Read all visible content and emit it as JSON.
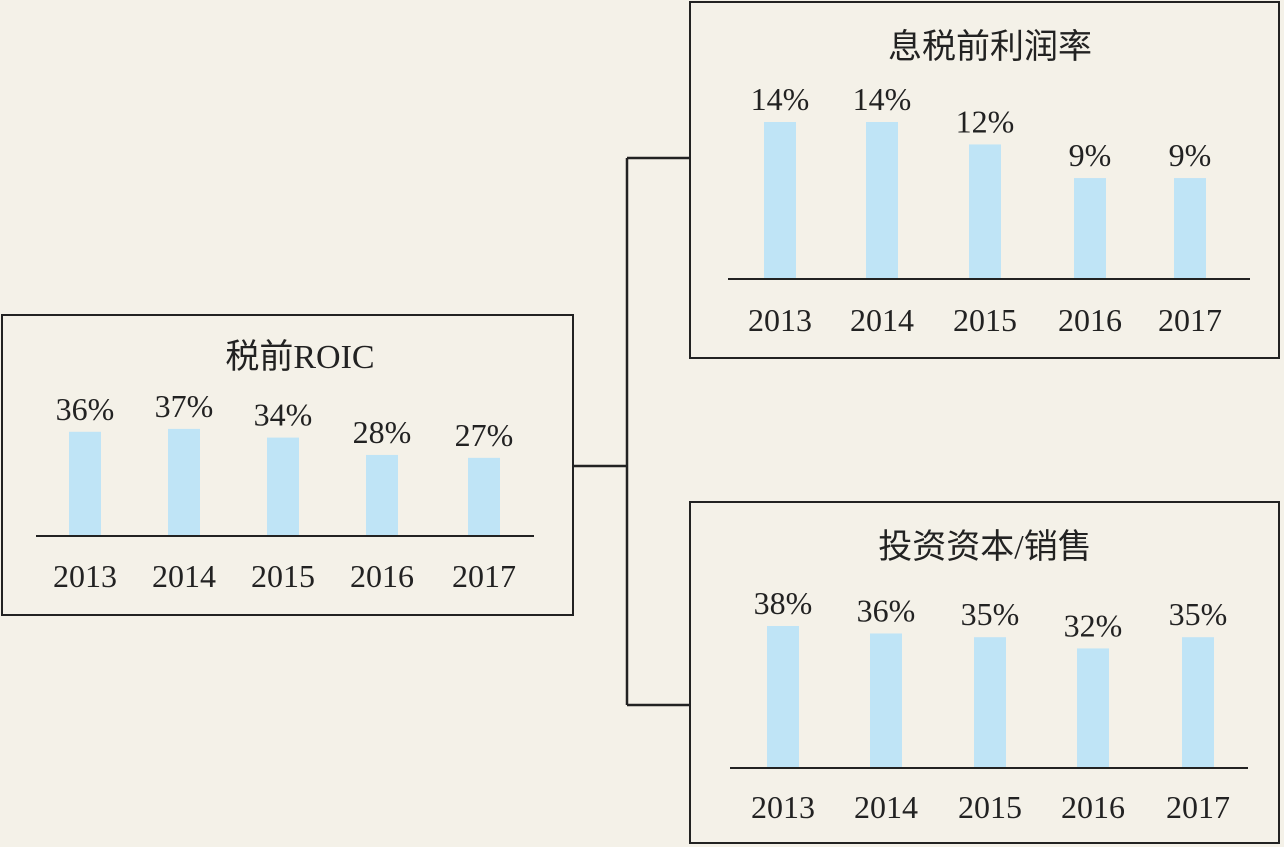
{
  "colors": {
    "background": "#f4f1e8",
    "bar": "#bfe4f6",
    "line": "#222222"
  },
  "chart_data": [
    {
      "type": "bar",
      "title": "税前ROIC",
      "categories": [
        "2013",
        "2014",
        "2015",
        "2016",
        "2017"
      ],
      "values": [
        36,
        37,
        34,
        28,
        27
      ],
      "value_labels": [
        "36%",
        "37%",
        "34%",
        "28%",
        "27%"
      ],
      "ylim": [
        0,
        38
      ]
    },
    {
      "type": "bar",
      "title": "息税前利润率",
      "categories": [
        "2013",
        "2014",
        "2015",
        "2016",
        "2017"
      ],
      "values": [
        14,
        14,
        12,
        9,
        9
      ],
      "value_labels": [
        "14%",
        "14%",
        "12%",
        "9%",
        "9%"
      ],
      "ylim": [
        0,
        14
      ]
    },
    {
      "type": "bar",
      "title": "投资资本/销售",
      "categories": [
        "2013",
        "2014",
        "2015",
        "2016",
        "2017"
      ],
      "values": [
        38,
        36,
        35,
        32,
        35
      ],
      "value_labels": [
        "38%",
        "36%",
        "35%",
        "32%",
        "35%"
      ],
      "ylim": [
        0,
        38
      ]
    }
  ]
}
